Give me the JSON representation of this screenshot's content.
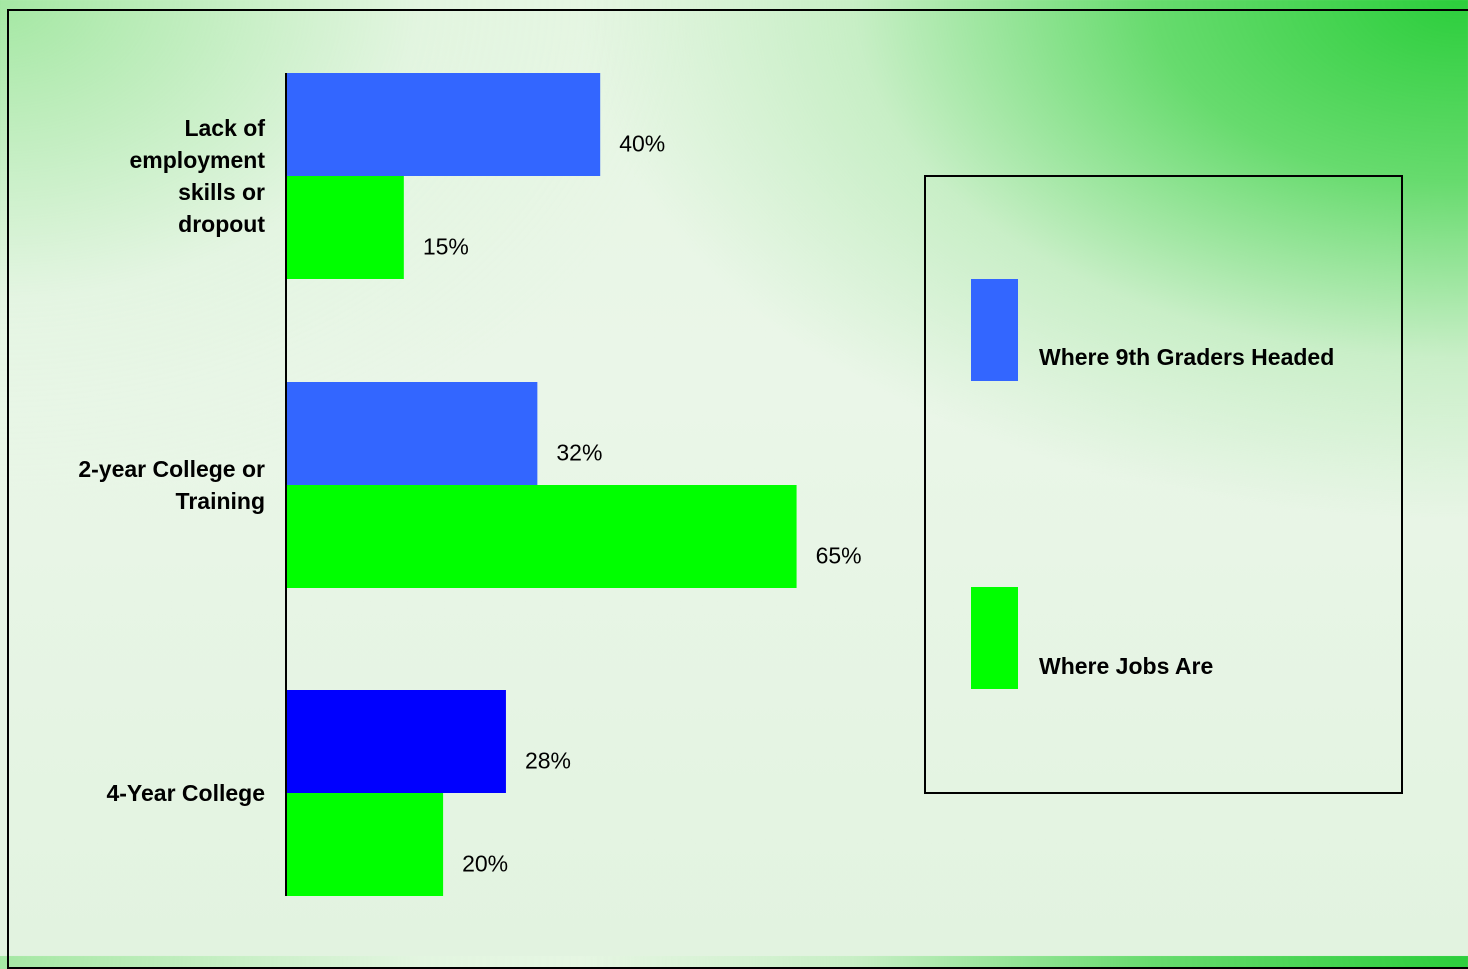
{
  "chart_data": {
    "type": "bar",
    "orientation": "horizontal",
    "categories": [
      [
        "Lack of",
        "employment",
        "skills or",
        "dropout"
      ],
      [
        "2-year College or",
        "Training"
      ],
      [
        "4-Year College"
      ]
    ],
    "series": [
      {
        "name": "Where 9th Graders Headed",
        "values": [
          40,
          32,
          28
        ],
        "labels": [
          "40%",
          "32%",
          "28%"
        ],
        "colors": [
          "#3366ff",
          "#3366ff",
          "#0000ff"
        ]
      },
      {
        "name": "Where Jobs Are",
        "values": [
          15,
          65,
          20
        ],
        "labels": [
          "15%",
          "65%",
          "20%"
        ],
        "colors": [
          "#00ff00",
          "#00ff00",
          "#00ff00"
        ]
      }
    ],
    "legend": {
      "placement": "right",
      "entries": [
        {
          "name": "Where 9th Graders Headed",
          "color": "#3366ff"
        },
        {
          "name": "Where Jobs Are",
          "color": "#00ff00"
        }
      ]
    },
    "title": "",
    "xlabel": "",
    "ylabel": "",
    "grid": false
  }
}
